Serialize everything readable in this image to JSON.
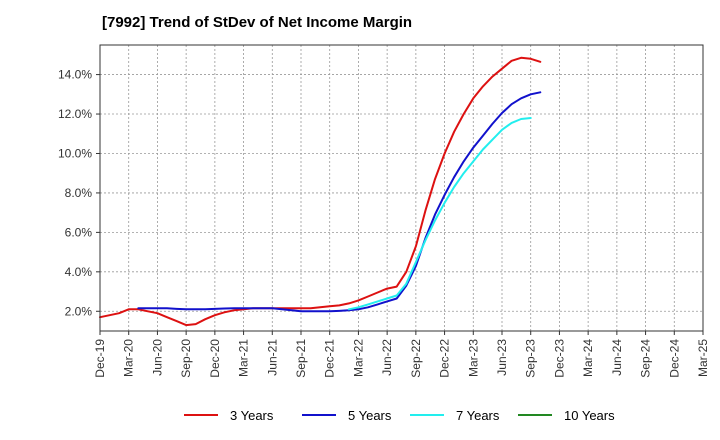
{
  "chart_data": {
    "type": "line",
    "title": "[7992]  Trend of StDev of Net Income Margin",
    "xlabel": "",
    "ylabel": "",
    "x_ticks": [
      "Dec-19",
      "Mar-20",
      "Jun-20",
      "Sep-20",
      "Dec-20",
      "Mar-21",
      "Jun-21",
      "Sep-21",
      "Dec-21",
      "Mar-22",
      "Jun-22",
      "Sep-22",
      "Dec-22",
      "Mar-23",
      "Jun-23",
      "Sep-23",
      "Dec-23",
      "Mar-24",
      "Jun-24",
      "Sep-24",
      "Dec-24",
      "Mar-25"
    ],
    "y_ticks": [
      "2.0%",
      "4.0%",
      "6.0%",
      "8.0%",
      "10.0%",
      "12.0%",
      "14.0%"
    ],
    "ylim": [
      1.0,
      15.5
    ],
    "grid": true,
    "legend_position": "bottom",
    "series": [
      {
        "name": "3 Years",
        "color": "#dd1111",
        "values": [
          [
            0,
            1.7
          ],
          [
            1,
            1.8
          ],
          [
            2,
            1.9
          ],
          [
            3,
            2.1
          ],
          [
            4,
            2.1
          ],
          [
            5,
            2.0
          ],
          [
            6,
            1.9
          ],
          [
            7,
            1.7
          ],
          [
            8,
            1.5
          ],
          [
            9,
            1.3
          ],
          [
            10,
            1.35
          ],
          [
            11,
            1.6
          ],
          [
            12,
            1.8
          ],
          [
            13,
            1.95
          ],
          [
            14,
            2.05
          ],
          [
            15,
            2.1
          ],
          [
            16,
            2.15
          ],
          [
            17,
            2.15
          ],
          [
            18,
            2.15
          ],
          [
            19,
            2.15
          ],
          [
            20,
            2.15
          ],
          [
            21,
            2.15
          ],
          [
            22,
            2.15
          ],
          [
            23,
            2.2
          ],
          [
            24,
            2.25
          ],
          [
            25,
            2.3
          ],
          [
            26,
            2.4
          ],
          [
            27,
            2.55
          ],
          [
            28,
            2.75
          ],
          [
            29,
            2.95
          ],
          [
            30,
            3.15
          ],
          [
            31,
            3.25
          ],
          [
            32,
            4.0
          ],
          [
            33,
            5.3
          ],
          [
            34,
            7.1
          ],
          [
            35,
            8.7
          ],
          [
            36,
            10.0
          ],
          [
            37,
            11.1
          ],
          [
            38,
            12.0
          ],
          [
            39,
            12.8
          ],
          [
            40,
            13.4
          ],
          [
            41,
            13.9
          ],
          [
            42,
            14.3
          ],
          [
            43,
            14.7
          ],
          [
            44,
            14.85
          ],
          [
            45,
            14.8
          ],
          [
            46,
            14.65
          ]
        ]
      },
      {
        "name": "5 Years",
        "color": "#1111cc",
        "values": [
          [
            4,
            2.15
          ],
          [
            5,
            2.15
          ],
          [
            6,
            2.15
          ],
          [
            7,
            2.15
          ],
          [
            8,
            2.12
          ],
          [
            9,
            2.1
          ],
          [
            10,
            2.1
          ],
          [
            11,
            2.1
          ],
          [
            12,
            2.12
          ],
          [
            13,
            2.14
          ],
          [
            14,
            2.15
          ],
          [
            15,
            2.15
          ],
          [
            16,
            2.15
          ],
          [
            17,
            2.15
          ],
          [
            18,
            2.15
          ],
          [
            19,
            2.1
          ],
          [
            20,
            2.05
          ],
          [
            21,
            2.0
          ],
          [
            22,
            2.0
          ],
          [
            23,
            2.0
          ],
          [
            24,
            2.0
          ],
          [
            25,
            2.02
          ],
          [
            26,
            2.05
          ],
          [
            27,
            2.1
          ],
          [
            28,
            2.2
          ],
          [
            29,
            2.35
          ],
          [
            30,
            2.5
          ],
          [
            31,
            2.65
          ],
          [
            32,
            3.3
          ],
          [
            33,
            4.3
          ],
          [
            34,
            5.7
          ],
          [
            35,
            6.9
          ],
          [
            36,
            7.9
          ],
          [
            37,
            8.8
          ],
          [
            38,
            9.6
          ],
          [
            39,
            10.3
          ],
          [
            40,
            10.9
          ],
          [
            41,
            11.5
          ],
          [
            42,
            12.05
          ],
          [
            43,
            12.5
          ],
          [
            44,
            12.8
          ],
          [
            45,
            13.0
          ],
          [
            46,
            13.1
          ]
        ]
      },
      {
        "name": "7 Years",
        "color": "#22eeee",
        "values": [
          [
            26,
            2.1
          ],
          [
            27,
            2.2
          ],
          [
            28,
            2.35
          ],
          [
            29,
            2.5
          ],
          [
            30,
            2.65
          ],
          [
            31,
            2.8
          ],
          [
            32,
            3.4
          ],
          [
            33,
            4.5
          ],
          [
            34,
            5.6
          ],
          [
            35,
            6.6
          ],
          [
            36,
            7.5
          ],
          [
            37,
            8.3
          ],
          [
            38,
            9.0
          ],
          [
            39,
            9.6
          ],
          [
            40,
            10.2
          ],
          [
            41,
            10.7
          ],
          [
            42,
            11.2
          ],
          [
            43,
            11.55
          ],
          [
            44,
            11.75
          ],
          [
            45,
            11.8
          ]
        ]
      },
      {
        "name": "10 Years",
        "color": "#228822",
        "values": []
      }
    ]
  }
}
